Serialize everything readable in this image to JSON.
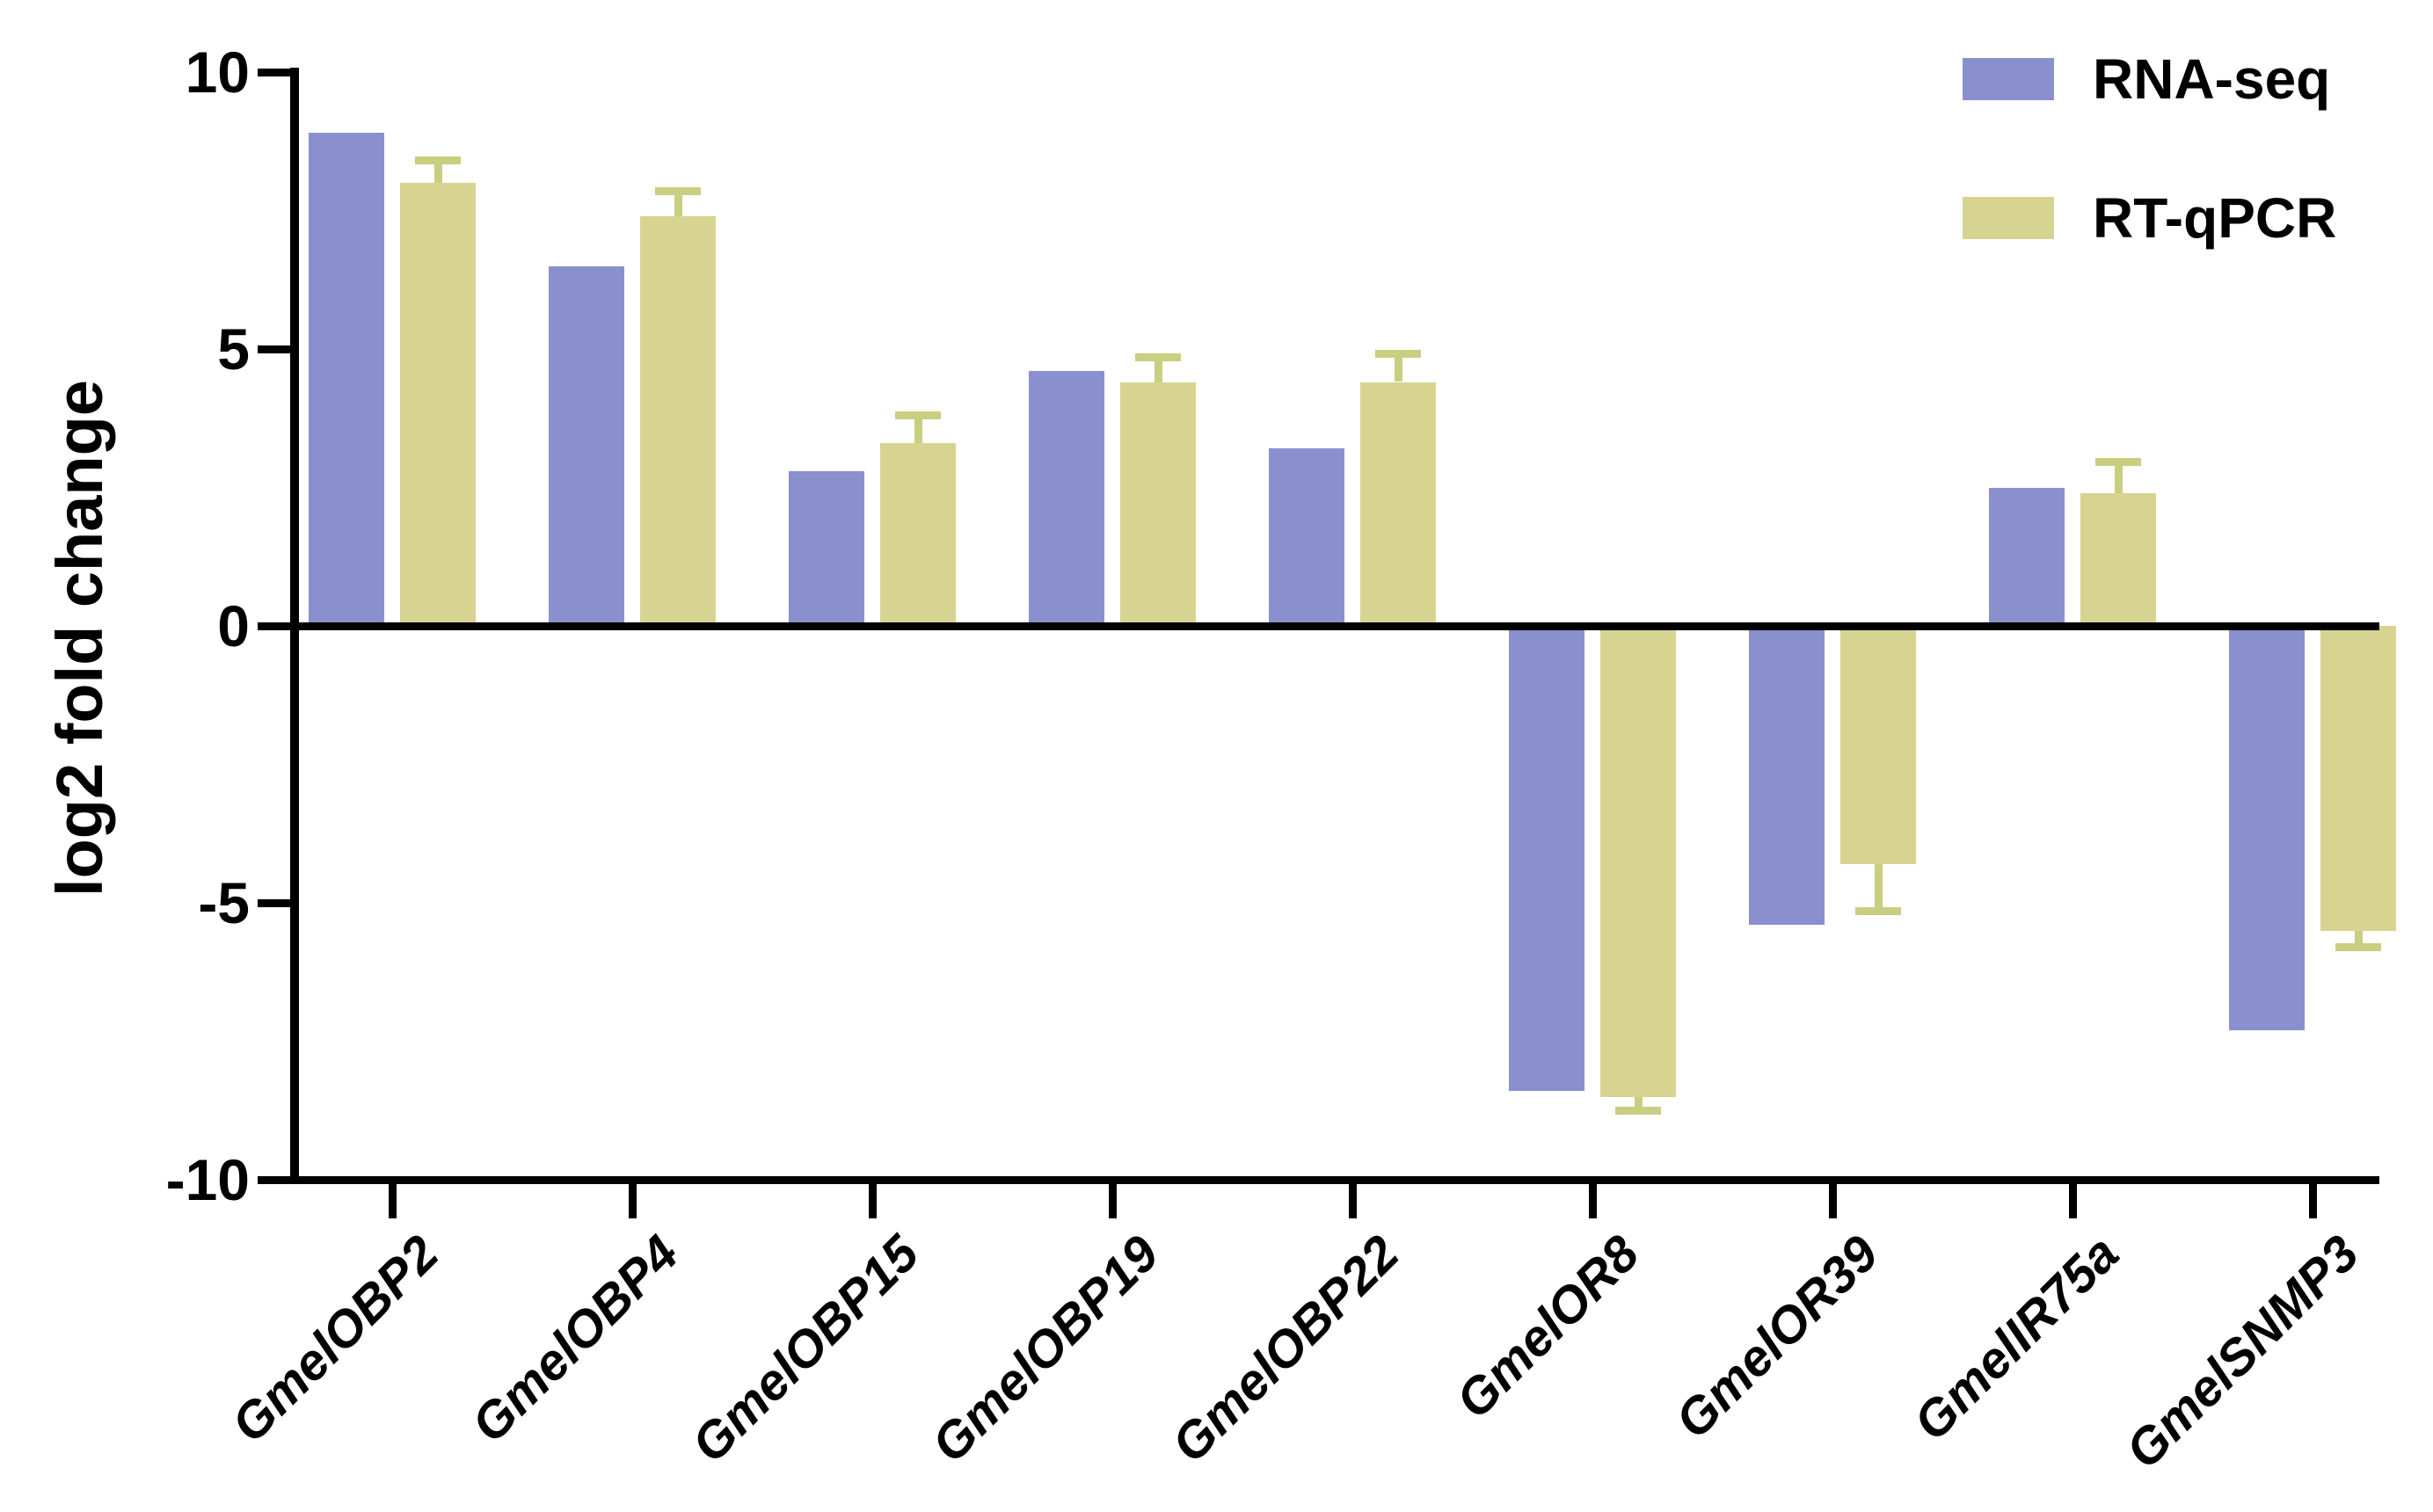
{
  "chart_data": {
    "type": "bar",
    "title": "",
    "ylabel": "log2 fold change",
    "xlabel": "",
    "ylim": [
      -10,
      10
    ],
    "yticks": [
      10,
      5,
      0,
      -5,
      -10
    ],
    "ytick_labels": [
      "10",
      "5",
      "0",
      "-5",
      "-10"
    ],
    "baseline": 0,
    "grid": false,
    "legend_position": "top-right",
    "axis_color": "#000000",
    "background_color": "#FFFFFF",
    "categories": [
      "GmelOBP2",
      "GmelOBP4",
      "GmelOBP15",
      "GmelOBP19",
      "GmelOBP22",
      "GmelOR8",
      "GmelOR39",
      "GmelIR75a",
      "GmelSNMP3"
    ],
    "series": [
      {
        "name": "RNA-seq",
        "color": "#8A90CD",
        "values": [
          8.9,
          6.5,
          2.8,
          4.6,
          3.2,
          -8.4,
          -5.4,
          2.5,
          -7.3
        ]
      },
      {
        "name": "RT-qPCR",
        "color": "#D7D492",
        "error_bar_color": "#C9CE80",
        "values": [
          8.0,
          7.4,
          3.3,
          4.4,
          4.4,
          -8.5,
          -4.3,
          2.4,
          -5.5
        ],
        "errors": [
          0.35,
          0.4,
          0.45,
          0.4,
          0.45,
          0.2,
          0.8,
          0.5,
          0.25
        ]
      }
    ]
  }
}
